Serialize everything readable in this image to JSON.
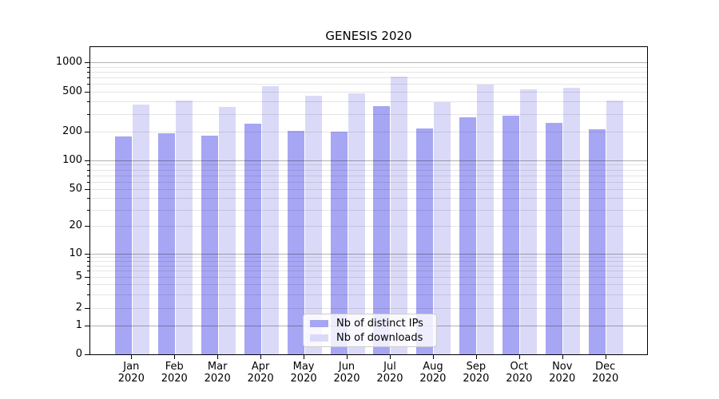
{
  "chart_data": {
    "type": "bar",
    "title": "GENESIS 2020",
    "xlabel": "",
    "ylabel": "",
    "yscale": "symlog",
    "grid": "on",
    "legend_position": "bottom-center-inside",
    "categories": [
      "Jan",
      "Feb",
      "Mar",
      "Apr",
      "May",
      "Jun",
      "Jul",
      "Aug",
      "Sep",
      "Oct",
      "Nov",
      "Dec"
    ],
    "year_label": "2020",
    "ytick_labels": [
      "0",
      "1",
      "2",
      "5",
      "10",
      "20",
      "50",
      "100",
      "200",
      "500",
      "1000"
    ],
    "yticks": [
      0,
      1,
      2,
      5,
      10,
      20,
      50,
      100,
      200,
      500,
      1000
    ],
    "ylim": [
      0,
      1400
    ],
    "series": [
      {
        "name": "Nb of distinct IPs",
        "color": "#a6a6f4",
        "values": [
          179,
          193,
          183,
          242,
          203,
          201,
          358,
          215,
          280,
          290,
          245,
          211
        ]
      },
      {
        "name": "Nb of downloads",
        "color": "#dadaf8",
        "values": [
          373,
          411,
          351,
          573,
          456,
          479,
          714,
          396,
          588,
          532,
          552,
          411
        ]
      }
    ]
  },
  "colors": {
    "major_grid": "rgba(0,0,0,0.30)",
    "minor_grid": "rgba(0,0,0,0.10)",
    "spine": "#000000",
    "legend_border": "#cccccc",
    "legend_bg": "rgba(255,255,255,0.8)"
  }
}
